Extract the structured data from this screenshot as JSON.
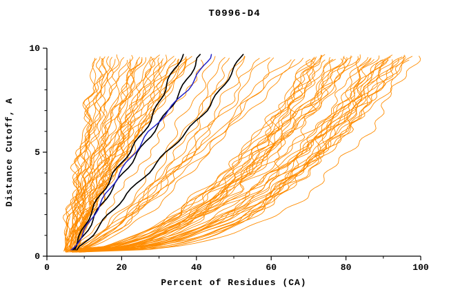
{
  "chart_data": {
    "type": "line",
    "title": "T0996-D4",
    "xlabel": "Percent of Residues (CA)",
    "ylabel": "Distance Cutoff, A",
    "xlim": [
      0,
      100
    ],
    "ylim": [
      0,
      10
    ],
    "xticks": [
      0,
      20,
      40,
      60,
      80,
      100
    ],
    "xminor_step": 10,
    "yticks": [
      0,
      5,
      10
    ],
    "yminor_step": 1,
    "grid": false,
    "legend": "none",
    "colors": {
      "models": "#ff8c00",
      "reference": "#000000",
      "highlight": "#2121c8",
      "axis": "#000000",
      "background": "#ffffff"
    },
    "model_groups": [
      {
        "name": "models-left-bundle",
        "color": "#ff8c00",
        "count": 38,
        "x_start": [
          4.5,
          8
        ],
        "x_end": [
          13,
          40
        ],
        "shape": [
          0.95,
          1.4
        ],
        "wiggle": [
          0.9,
          1.9
        ],
        "seed": 11
      },
      {
        "name": "models-mid",
        "color": "#ff8c00",
        "count": 12,
        "x_start": [
          5,
          9
        ],
        "x_end": [
          42,
          69
        ],
        "shape": [
          0.5,
          0.9
        ],
        "wiggle": [
          1.0,
          2.0
        ],
        "seed": 77
      },
      {
        "name": "models-right-sweep",
        "color": "#ff8c00",
        "count": 42,
        "x_start": [
          5,
          10
        ],
        "x_end": [
          70,
          99
        ],
        "shape": [
          0.28,
          0.6
        ],
        "wiggle": [
          1.2,
          2.4
        ],
        "seed": 303
      }
    ],
    "reference_series": [
      {
        "name": "black-model-1",
        "color": "#000000",
        "width": 1.7,
        "points": [
          [
            7,
            0.3
          ],
          [
            9,
            1
          ],
          [
            11.5,
            2
          ],
          [
            14.5,
            3
          ],
          [
            18,
            4
          ],
          [
            22,
            5
          ],
          [
            26,
            6
          ],
          [
            29,
            7
          ],
          [
            31.5,
            8
          ],
          [
            34,
            9
          ],
          [
            36.5,
            9.7
          ]
        ]
      },
      {
        "name": "black-model-2",
        "color": "#000000",
        "width": 1.7,
        "points": [
          [
            7.5,
            0.3
          ],
          [
            10,
            1
          ],
          [
            13,
            2
          ],
          [
            16.5,
            3
          ],
          [
            20.5,
            4
          ],
          [
            24.5,
            5
          ],
          [
            28.5,
            6
          ],
          [
            32.5,
            7
          ],
          [
            36,
            8
          ],
          [
            39,
            9
          ],
          [
            41,
            9.7
          ]
        ]
      },
      {
        "name": "black-model-3",
        "color": "#000000",
        "width": 1.7,
        "points": [
          [
            8,
            0.3
          ],
          [
            12,
            1
          ],
          [
            16.5,
            2
          ],
          [
            21.5,
            3
          ],
          [
            27,
            4
          ],
          [
            32,
            5
          ],
          [
            37.5,
            6
          ],
          [
            42.5,
            7
          ],
          [
            46.5,
            8
          ],
          [
            50,
            9
          ],
          [
            52.5,
            9.7
          ]
        ]
      },
      {
        "name": "blue-model",
        "color": "#2121c8",
        "width": 1.5,
        "points": [
          [
            6.5,
            0.3
          ],
          [
            9.5,
            1
          ],
          [
            12.5,
            2
          ],
          [
            16,
            3
          ],
          [
            19.5,
            4
          ],
          [
            23.5,
            5
          ],
          [
            27.5,
            6
          ],
          [
            32.5,
            7
          ],
          [
            37.5,
            8
          ],
          [
            41.5,
            9
          ],
          [
            44,
            9.7
          ]
        ]
      }
    ]
  }
}
